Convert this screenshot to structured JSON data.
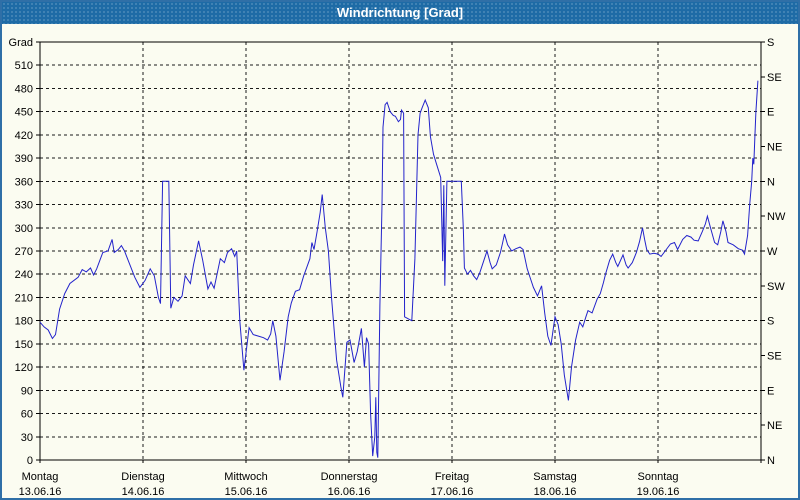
{
  "window": {
    "title": "Windrichtung [Grad]"
  },
  "colors": {
    "titlebar_bg": "#1e6ba6",
    "frame_border": "#2f6fa7",
    "background": "#fbfcf1",
    "line": "#2323cb",
    "grid": "#1a1a1a",
    "text": "#000000"
  },
  "chart_data": {
    "type": "line",
    "title": "Windrichtung [Grad]",
    "grid": true,
    "legend": "none",
    "y_axis": {
      "label": "Grad",
      "min": 0,
      "max": 540,
      "tick_step": 30,
      "labeled_max": 510
    },
    "y_axis_right": {
      "tick_step": 45,
      "labels": [
        {
          "value": 540,
          "label": "S"
        },
        {
          "value": 495,
          "label": "SE"
        },
        {
          "value": 450,
          "label": "E"
        },
        {
          "value": 405,
          "label": "NE"
        },
        {
          "value": 360,
          "label": "N"
        },
        {
          "value": 315,
          "label": "NW"
        },
        {
          "value": 270,
          "label": "W"
        },
        {
          "value": 225,
          "label": "SW"
        },
        {
          "value": 180,
          "label": "S"
        },
        {
          "value": 135,
          "label": "SE"
        },
        {
          "value": 90,
          "label": "E"
        },
        {
          "value": 45,
          "label": "NE"
        },
        {
          "value": 0,
          "label": "N"
        }
      ]
    },
    "x_axis": {
      "unit": "days",
      "range": [
        0,
        7
      ],
      "days": [
        {
          "name": "Montag",
          "date": "13.06.16"
        },
        {
          "name": "Dienstag",
          "date": "14.06.16"
        },
        {
          "name": "Mittwoch",
          "date": "15.06.16"
        },
        {
          "name": "Donnerstag",
          "date": "16.06.16"
        },
        {
          "name": "Freitag",
          "date": "17.06.16"
        },
        {
          "name": "Samstag",
          "date": "18.06.16"
        },
        {
          "name": "Sonntag",
          "date": "19.06.16"
        }
      ]
    },
    "series": [
      {
        "name": "Windrichtung",
        "color": "#2323cb",
        "points": [
          [
            0.0,
            178
          ],
          [
            0.04,
            172
          ],
          [
            0.08,
            168
          ],
          [
            0.12,
            157
          ],
          [
            0.15,
            162
          ],
          [
            0.19,
            195
          ],
          [
            0.24,
            215
          ],
          [
            0.29,
            228
          ],
          [
            0.37,
            236
          ],
          [
            0.41,
            246
          ],
          [
            0.45,
            243
          ],
          [
            0.49,
            248
          ],
          [
            0.52,
            239
          ],
          [
            0.55,
            247
          ],
          [
            0.61,
            268
          ],
          [
            0.66,
            270
          ],
          [
            0.7,
            285
          ],
          [
            0.72,
            268
          ],
          [
            0.76,
            272
          ],
          [
            0.79,
            277
          ],
          [
            0.82,
            270
          ],
          [
            0.85,
            260
          ],
          [
            0.92,
            236
          ],
          [
            0.97,
            223
          ],
          [
            1.02,
            232
          ],
          [
            1.07,
            247
          ],
          [
            1.11,
            238
          ],
          [
            1.15,
            210
          ],
          [
            1.17,
            202
          ],
          [
            1.19,
            360
          ],
          [
            1.25,
            360
          ],
          [
            1.27,
            196
          ],
          [
            1.3,
            210
          ],
          [
            1.34,
            205
          ],
          [
            1.38,
            212
          ],
          [
            1.41,
            238
          ],
          [
            1.46,
            228
          ],
          [
            1.49,
            252
          ],
          [
            1.54,
            283
          ],
          [
            1.58,
            258
          ],
          [
            1.63,
            221
          ],
          [
            1.66,
            230
          ],
          [
            1.69,
            222
          ],
          [
            1.75,
            260
          ],
          [
            1.79,
            255
          ],
          [
            1.82,
            268
          ],
          [
            1.86,
            273
          ],
          [
            1.89,
            263
          ],
          [
            1.91,
            270
          ],
          [
            1.94,
            180
          ],
          [
            1.98,
            116
          ],
          [
            2.03,
            171
          ],
          [
            2.07,
            162
          ],
          [
            2.12,
            160
          ],
          [
            2.17,
            158
          ],
          [
            2.21,
            155
          ],
          [
            2.24,
            163
          ],
          [
            2.26,
            180
          ],
          [
            2.29,
            160
          ],
          [
            2.33,
            103
          ],
          [
            2.37,
            140
          ],
          [
            2.41,
            185
          ],
          [
            2.44,
            203
          ],
          [
            2.48,
            218
          ],
          [
            2.52,
            220
          ],
          [
            2.56,
            238
          ],
          [
            2.59,
            249
          ],
          [
            2.62,
            260
          ],
          [
            2.64,
            281
          ],
          [
            2.66,
            272
          ],
          [
            2.69,
            295
          ],
          [
            2.72,
            320
          ],
          [
            2.74,
            343
          ],
          [
            2.77,
            300
          ],
          [
            2.8,
            270
          ],
          [
            2.83,
            210
          ],
          [
            2.88,
            129
          ],
          [
            2.92,
            95
          ],
          [
            2.94,
            81
          ],
          [
            2.98,
            152
          ],
          [
            3.01,
            155
          ],
          [
            3.05,
            126
          ],
          [
            3.08,
            140
          ],
          [
            3.12,
            170
          ],
          [
            3.15,
            120
          ],
          [
            3.17,
            158
          ],
          [
            3.19,
            150
          ],
          [
            3.21,
            60
          ],
          [
            3.23,
            5
          ],
          [
            3.25,
            30
          ],
          [
            3.26,
            81
          ],
          [
            3.27,
            10
          ],
          [
            3.28,
            3
          ],
          [
            3.3,
            200
          ],
          [
            3.32,
            330
          ],
          [
            3.33,
            430
          ],
          [
            3.35,
            459
          ],
          [
            3.37,
            462
          ],
          [
            3.4,
            450
          ],
          [
            3.43,
            445
          ],
          [
            3.45,
            444
          ],
          [
            3.48,
            437
          ],
          [
            3.5,
            440
          ],
          [
            3.51,
            452
          ],
          [
            3.53,
            448
          ],
          [
            3.54,
            185
          ],
          [
            3.58,
            182
          ],
          [
            3.61,
            180
          ],
          [
            3.64,
            260
          ],
          [
            3.67,
            420
          ],
          [
            3.69,
            448
          ],
          [
            3.71,
            455
          ],
          [
            3.74,
            465
          ],
          [
            3.77,
            455
          ],
          [
            3.79,
            418
          ],
          [
            3.82,
            395
          ],
          [
            3.85,
            382
          ],
          [
            3.89,
            365
          ],
          [
            3.91,
            257
          ],
          [
            3.92,
            355
          ],
          [
            3.93,
            225
          ],
          [
            3.95,
            360
          ],
          [
            4.0,
            360
          ],
          [
            4.09,
            360
          ],
          [
            4.11,
            300
          ],
          [
            4.12,
            248
          ],
          [
            4.15,
            240
          ],
          [
            4.18,
            245
          ],
          [
            4.21,
            238
          ],
          [
            4.24,
            233
          ],
          [
            4.27,
            242
          ],
          [
            4.31,
            258
          ],
          [
            4.34,
            270
          ],
          [
            4.37,
            255
          ],
          [
            4.39,
            247
          ],
          [
            4.43,
            252
          ],
          [
            4.47,
            268
          ],
          [
            4.49,
            280
          ],
          [
            4.51,
            292
          ],
          [
            4.54,
            278
          ],
          [
            4.58,
            270
          ],
          [
            4.62,
            273
          ],
          [
            4.66,
            275
          ],
          [
            4.69,
            272
          ],
          [
            4.73,
            247
          ],
          [
            4.76,
            235
          ],
          [
            4.79,
            223
          ],
          [
            4.83,
            212
          ],
          [
            4.87,
            225
          ],
          [
            4.9,
            190
          ],
          [
            4.93,
            160
          ],
          [
            4.96,
            148
          ],
          [
            5.0,
            185
          ],
          [
            5.03,
            175
          ],
          [
            5.06,
            150
          ],
          [
            5.09,
            110
          ],
          [
            5.13,
            77
          ],
          [
            5.16,
            120
          ],
          [
            5.2,
            155
          ],
          [
            5.24,
            178
          ],
          [
            5.27,
            172
          ],
          [
            5.3,
            185
          ],
          [
            5.32,
            193
          ],
          [
            5.36,
            190
          ],
          [
            5.41,
            208
          ],
          [
            5.44,
            215
          ],
          [
            5.47,
            229
          ],
          [
            5.49,
            240
          ],
          [
            5.53,
            258
          ],
          [
            5.56,
            266
          ],
          [
            5.59,
            255
          ],
          [
            5.61,
            250
          ],
          [
            5.66,
            265
          ],
          [
            5.69,
            252
          ],
          [
            5.71,
            248
          ],
          [
            5.75,
            255
          ],
          [
            5.79,
            268
          ],
          [
            5.82,
            282
          ],
          [
            5.85,
            300
          ],
          [
            5.87,
            285
          ],
          [
            5.89,
            272
          ],
          [
            5.92,
            266
          ],
          [
            5.96,
            267
          ],
          [
            6.0,
            266
          ],
          [
            6.03,
            263
          ],
          [
            6.07,
            270
          ],
          [
            6.12,
            279
          ],
          [
            6.16,
            281
          ],
          [
            6.19,
            272
          ],
          [
            6.24,
            285
          ],
          [
            6.28,
            290
          ],
          [
            6.32,
            288
          ],
          [
            6.35,
            284
          ],
          [
            6.39,
            283
          ],
          [
            6.43,
            295
          ],
          [
            6.46,
            305
          ],
          [
            6.48,
            315
          ],
          [
            6.51,
            300
          ],
          [
            6.55,
            281
          ],
          [
            6.58,
            278
          ],
          [
            6.61,
            295
          ],
          [
            6.63,
            309
          ],
          [
            6.66,
            295
          ],
          [
            6.68,
            281
          ],
          [
            6.73,
            278
          ],
          [
            6.78,
            273
          ],
          [
            6.82,
            271
          ],
          [
            6.84,
            266
          ],
          [
            6.87,
            290
          ],
          [
            6.89,
            330
          ],
          [
            6.91,
            360
          ],
          [
            6.92,
            390
          ],
          [
            6.93,
            382
          ],
          [
            6.94,
            415
          ],
          [
            6.95,
            450
          ],
          [
            6.96,
            470
          ],
          [
            6.97,
            490
          ]
        ]
      }
    ]
  }
}
